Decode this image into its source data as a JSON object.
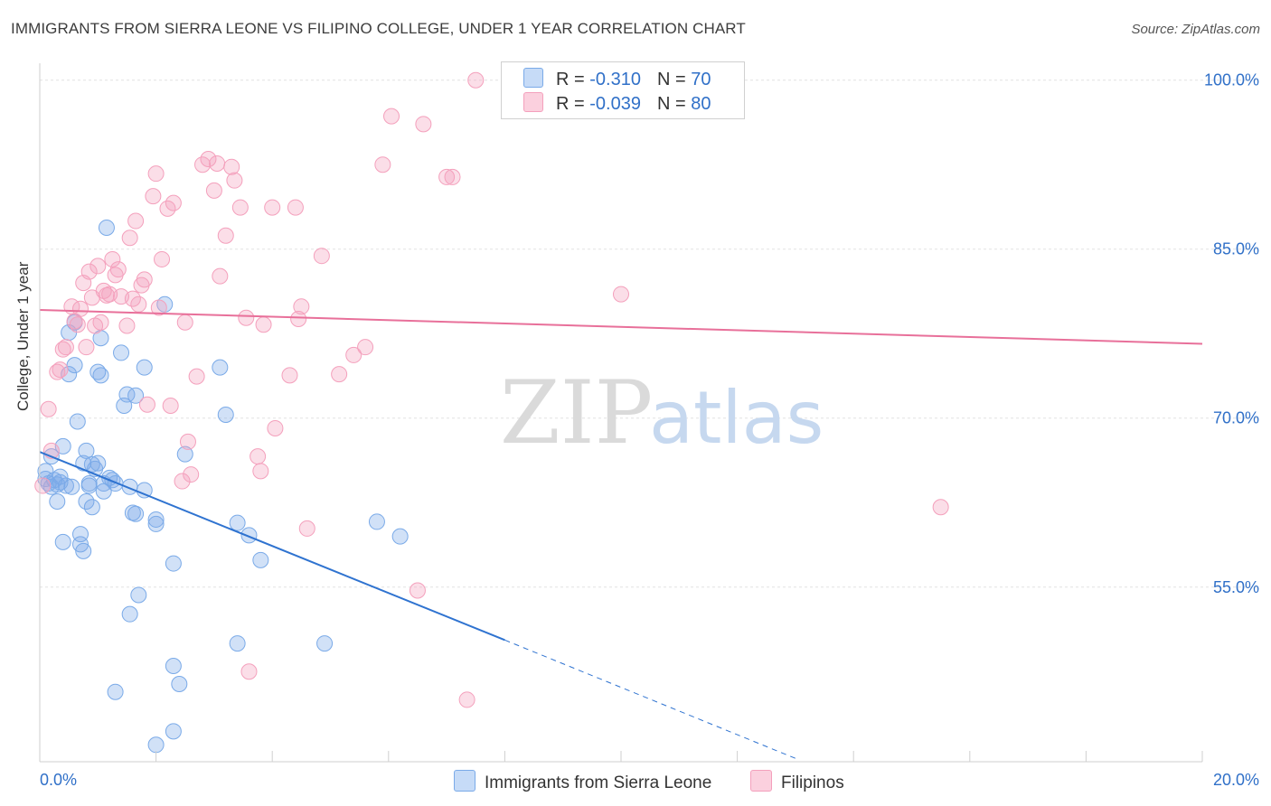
{
  "title": "IMMIGRANTS FROM SIERRA LEONE VS FILIPINO COLLEGE, UNDER 1 YEAR CORRELATION CHART",
  "source": "Source: ZipAtlas.com",
  "watermark": {
    "zip": "ZIP",
    "atlas": "atlas"
  },
  "chart_data": {
    "type": "scatter",
    "title": "IMMIGRANTS FROM SIERRA LEONE VS FILIPINO COLLEGE, UNDER 1 YEAR CORRELATION CHART",
    "xlabel": "",
    "ylabel": "College, Under 1 year",
    "xlim": [
      0.0,
      20.0
    ],
    "ylim": [
      39.5,
      101.5
    ],
    "x_tick_labels": [
      "0.0%",
      "20.0%"
    ],
    "y_ticks": [
      100.0,
      85.0,
      70.0,
      55.0
    ],
    "y_tick_labels": [
      "100.0%",
      "85.0%",
      "70.0%",
      "55.0%"
    ],
    "legend": {
      "series1": {
        "r_label": "R = ",
        "r_value": "-0.310",
        "n_label": "N = ",
        "n_value": "70"
      },
      "series2": {
        "r_label": "R = ",
        "r_value": "-0.039",
        "n_label": "N = ",
        "n_value": "80"
      }
    },
    "series": [
      {
        "name": "Immigrants from Sierra Leone",
        "color": "#7aaae8",
        "line_color": "#2f73d0",
        "trend": {
          "x0": 0.0,
          "y0": 67.0,
          "x1": 8.0,
          "y1": 50.3,
          "dash_x1": 13.0,
          "dash_y1": 39.8
        },
        "points": [
          [
            0.1,
            65.3
          ],
          [
            0.15,
            64.2
          ],
          [
            0.2,
            63.9
          ],
          [
            0.25,
            64.5
          ],
          [
            0.3,
            64.1
          ],
          [
            0.3,
            62.6
          ],
          [
            0.35,
            64.8
          ],
          [
            0.4,
            59.0
          ],
          [
            0.4,
            67.5
          ],
          [
            0.45,
            64.0
          ],
          [
            0.5,
            77.6
          ],
          [
            0.5,
            73.9
          ],
          [
            0.55,
            63.9
          ],
          [
            0.6,
            74.7
          ],
          [
            0.6,
            78.5
          ],
          [
            0.65,
            69.7
          ],
          [
            0.7,
            58.8
          ],
          [
            0.7,
            59.7
          ],
          [
            0.75,
            66.0
          ],
          [
            0.75,
            58.2
          ],
          [
            0.8,
            67.1
          ],
          [
            0.8,
            62.6
          ],
          [
            0.85,
            64.2
          ],
          [
            0.85,
            64.0
          ],
          [
            0.9,
            62.1
          ],
          [
            0.9,
            65.9
          ],
          [
            0.95,
            65.5
          ],
          [
            1.0,
            74.1
          ],
          [
            1.0,
            66.0
          ],
          [
            1.05,
            77.1
          ],
          [
            1.05,
            73.8
          ],
          [
            1.1,
            64.2
          ],
          [
            1.1,
            63.5
          ],
          [
            1.15,
            86.9
          ],
          [
            1.2,
            64.7
          ],
          [
            1.25,
            64.5
          ],
          [
            1.3,
            64.2
          ],
          [
            1.3,
            45.7
          ],
          [
            1.4,
            75.8
          ],
          [
            1.45,
            71.1
          ],
          [
            1.5,
            72.1
          ],
          [
            1.55,
            63.9
          ],
          [
            1.55,
            52.6
          ],
          [
            1.6,
            61.6
          ],
          [
            1.65,
            61.5
          ],
          [
            1.65,
            72.0
          ],
          [
            1.7,
            54.3
          ],
          [
            1.8,
            63.6
          ],
          [
            1.8,
            74.5
          ],
          [
            2.0,
            61.0
          ],
          [
            2.0,
            60.6
          ],
          [
            2.0,
            41.0
          ],
          [
            2.15,
            80.1
          ],
          [
            2.3,
            42.2
          ],
          [
            2.3,
            57.1
          ],
          [
            2.3,
            48.0
          ],
          [
            2.4,
            46.4
          ],
          [
            2.5,
            66.8
          ],
          [
            3.1,
            74.5
          ],
          [
            3.2,
            70.3
          ],
          [
            3.4,
            50.0
          ],
          [
            3.4,
            60.7
          ],
          [
            3.6,
            59.6
          ],
          [
            3.8,
            57.4
          ],
          [
            4.9,
            50.0
          ],
          [
            5.8,
            60.8
          ],
          [
            6.2,
            59.5
          ],
          [
            0.2,
            66.6
          ],
          [
            0.1,
            64.6
          ],
          [
            0.35,
            64.3
          ]
        ]
      },
      {
        "name": "Filipinos",
        "color": "#f4a0bc",
        "line_color": "#e8709a",
        "trend": {
          "x0": 0.0,
          "y0": 79.6,
          "x1": 20.0,
          "y1": 76.6
        },
        "points": [
          [
            0.05,
            64.0
          ],
          [
            0.15,
            70.8
          ],
          [
            0.2,
            67.1
          ],
          [
            0.3,
            74.1
          ],
          [
            0.35,
            74.3
          ],
          [
            0.4,
            76.1
          ],
          [
            0.45,
            76.3
          ],
          [
            0.55,
            79.9
          ],
          [
            0.6,
            78.6
          ],
          [
            0.65,
            78.3
          ],
          [
            0.7,
            79.7
          ],
          [
            0.75,
            82.0
          ],
          [
            0.8,
            76.3
          ],
          [
            0.85,
            83.0
          ],
          [
            0.9,
            80.7
          ],
          [
            0.95,
            78.2
          ],
          [
            1.0,
            83.5
          ],
          [
            1.05,
            78.5
          ],
          [
            1.1,
            81.3
          ],
          [
            1.15,
            80.9
          ],
          [
            1.2,
            81.0
          ],
          [
            1.25,
            84.1
          ],
          [
            1.3,
            82.7
          ],
          [
            1.35,
            83.2
          ],
          [
            1.4,
            80.8
          ],
          [
            1.5,
            78.2
          ],
          [
            1.55,
            86.0
          ],
          [
            1.6,
            80.6
          ],
          [
            1.65,
            87.5
          ],
          [
            1.7,
            80.1
          ],
          [
            1.75,
            81.8
          ],
          [
            1.8,
            82.3
          ],
          [
            1.85,
            71.2
          ],
          [
            1.95,
            89.7
          ],
          [
            2.0,
            91.7
          ],
          [
            2.05,
            79.8
          ],
          [
            2.1,
            84.1
          ],
          [
            2.2,
            88.6
          ],
          [
            2.25,
            71.1
          ],
          [
            2.3,
            89.1
          ],
          [
            2.45,
            64.4
          ],
          [
            2.5,
            78.5
          ],
          [
            2.55,
            67.9
          ],
          [
            2.6,
            65.0
          ],
          [
            2.7,
            73.7
          ],
          [
            2.8,
            92.5
          ],
          [
            2.9,
            93.0
          ],
          [
            3.0,
            90.2
          ],
          [
            3.05,
            92.6
          ],
          [
            3.1,
            82.6
          ],
          [
            3.2,
            86.2
          ],
          [
            3.3,
            92.3
          ],
          [
            3.35,
            91.1
          ],
          [
            3.45,
            88.7
          ],
          [
            3.55,
            78.9
          ],
          [
            3.6,
            47.5
          ],
          [
            3.75,
            66.6
          ],
          [
            3.8,
            65.3
          ],
          [
            3.85,
            78.3
          ],
          [
            4.0,
            88.7
          ],
          [
            4.05,
            69.1
          ],
          [
            4.3,
            73.8
          ],
          [
            4.4,
            88.7
          ],
          [
            4.45,
            78.8
          ],
          [
            4.5,
            79.9
          ],
          [
            4.6,
            60.2
          ],
          [
            4.85,
            84.4
          ],
          [
            5.15,
            73.9
          ],
          [
            5.4,
            75.6
          ],
          [
            5.6,
            76.3
          ],
          [
            5.9,
            92.5
          ],
          [
            6.05,
            96.8
          ],
          [
            6.5,
            54.7
          ],
          [
            6.6,
            96.1
          ],
          [
            7.0,
            91.4
          ],
          [
            7.1,
            91.4
          ],
          [
            7.35,
            45.0
          ],
          [
            7.5,
            100.0
          ],
          [
            10.0,
            81.0
          ],
          [
            15.5,
            62.1
          ]
        ]
      }
    ]
  },
  "bottom_legend": {
    "series1": "Immigrants from Sierra Leone",
    "series2": "Filipinos"
  }
}
